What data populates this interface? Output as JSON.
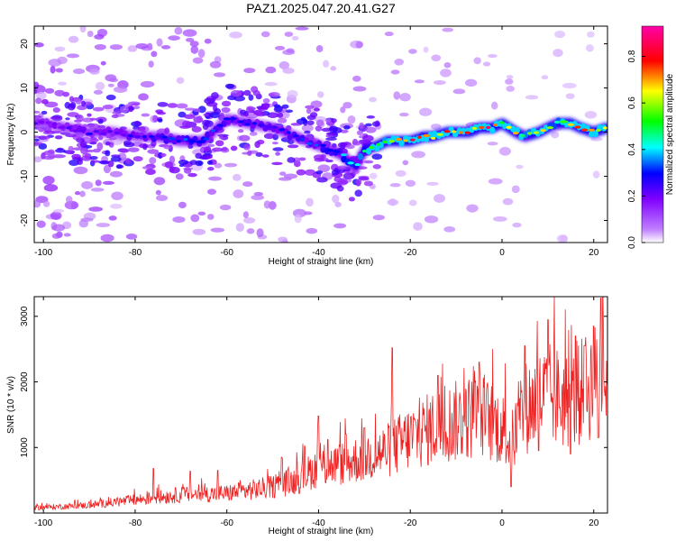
{
  "chart_data": [
    {
      "type": "heatmap",
      "title": "PAZ1.2025.047.20.41.G27",
      "xlabel": "Height of straight line (km)",
      "ylabel": "Frequency (Hz)",
      "xlim": [
        -102,
        23
      ],
      "ylim": [
        -25,
        24
      ],
      "xticks": [
        -100,
        -80,
        -60,
        -40,
        -20,
        0,
        20
      ],
      "yticks": [
        -20,
        -10,
        0,
        10,
        20
      ],
      "colorbar": {
        "label": "Normalized spectral amplitude",
        "range": [
          0.0,
          0.93
        ],
        "ticks": [
          0.0,
          0.2,
          0.4,
          0.6,
          0.8
        ],
        "tick_labels": [
          "0.0",
          "0.2",
          "0.4",
          "0.6",
          "0.8"
        ],
        "colormap": [
          "#ffffff",
          "#8000ff",
          "#0000ff",
          "#00ffff",
          "#00ff00",
          "#ffff00",
          "#ff0000",
          "#ff00ff"
        ]
      },
      "ridge": {
        "x": [
          -100,
          -95,
          -90,
          -85,
          -80,
          -75,
          -70,
          -65,
          -60,
          -55,
          -50,
          -45,
          -40,
          -35,
          -32,
          -30,
          -27,
          -25,
          -22,
          -20,
          -17,
          -15,
          -12,
          -10,
          -7,
          -5,
          -2,
          0,
          3,
          5,
          8,
          10,
          12,
          15,
          17,
          20,
          23
        ],
        "frequency": [
          2,
          1,
          0,
          0,
          -1,
          -1,
          -2,
          -2,
          3,
          2,
          1,
          -1,
          -3,
          -5,
          -8,
          -4,
          -3,
          -2,
          -2,
          -2,
          -1,
          -1,
          0,
          0,
          0,
          1,
          1,
          2,
          0,
          -1,
          0,
          1,
          2,
          2,
          1,
          0,
          1
        ],
        "amplitude": [
          0.22,
          0.24,
          0.25,
          0.25,
          0.27,
          0.3,
          0.33,
          0.36,
          0.3,
          0.28,
          0.28,
          0.3,
          0.33,
          0.38,
          0.42,
          0.5,
          0.6,
          0.66,
          0.72,
          0.8,
          0.78,
          0.72,
          0.78,
          0.86,
          0.8,
          0.76,
          0.9,
          0.62,
          0.7,
          0.5,
          0.8,
          0.6,
          0.55,
          0.72,
          0.85,
          0.75,
          0.62
        ]
      }
    },
    {
      "type": "line",
      "xlabel": "Height of straight line (km)",
      "ylabel": "SNR (10 * v/v)",
      "xlim": [
        -102,
        23
      ],
      "ylim": [
        0,
        3300
      ],
      "xticks": [
        -100,
        -80,
        -60,
        -40,
        -20,
        0,
        20
      ],
      "yticks": [
        1000,
        2000,
        3000
      ],
      "color": "#ee2222",
      "trend": {
        "x": [
          -102,
          -90,
          -80,
          -70,
          -60,
          -50,
          -45,
          -40,
          -35,
          -30,
          -25,
          -20,
          -15,
          -10,
          -5,
          0,
          2,
          5,
          10,
          15,
          20,
          23
        ],
        "snr": [
          80,
          120,
          200,
          280,
          300,
          400,
          500,
          700,
          750,
          850,
          950,
          1150,
          1300,
          1400,
          1500,
          1300,
          1050,
          1600,
          1800,
          1700,
          2000,
          2100
        ]
      },
      "peaks": {
        "x": [
          -76,
          -68,
          -62,
          -48,
          -43,
          -40,
          -38,
          -34,
          -30,
          -24,
          -14,
          -5,
          2,
          5,
          10,
          16,
          18,
          20,
          21.5,
          22
        ],
        "snr": [
          680,
          640,
          650,
          850,
          1020,
          1480,
          1120,
          1200,
          1300,
          2520,
          2100,
          2300,
          2250,
          2550,
          2950,
          2700,
          2550,
          2850,
          3280,
          3100
        ]
      },
      "dips": {
        "x": [
          2,
          8,
          15,
          21
        ],
        "snr": [
          400,
          950,
          900,
          1150
        ]
      }
    }
  ]
}
